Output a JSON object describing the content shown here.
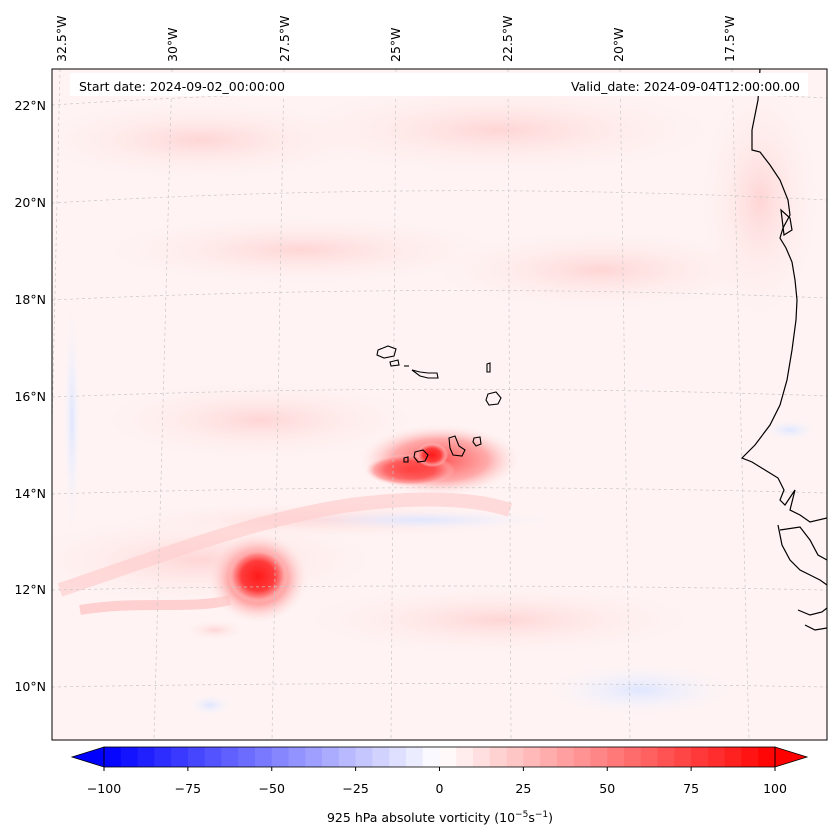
{
  "header": {
    "start_date": "Start date: 2024-09-02_00:00:00",
    "valid_date": "Valid_date: 2024-09-04T12:00:00.00"
  },
  "lon_labels": [
    "32.5°W",
    "30°W",
    "27.5°W",
    "25°W",
    "22.5°W",
    "20°W",
    "17.5°W"
  ],
  "lat_labels": [
    "22°N",
    "20°N",
    "18°N",
    "16°N",
    "14°N",
    "12°N",
    "10°N"
  ],
  "colorbar": {
    "label_html": "925 hPa absolute vorticity (10<tspan baseline-shift='super' font-size='9'>−5</tspan>s<tspan baseline-shift='super' font-size='9'>−1</tspan>)",
    "label_text": "925 hPa absolute vorticity (10−5s−1)",
    "ticks": [
      "−100",
      "−75",
      "−50",
      "−25",
      "0",
      "25",
      "50",
      "75",
      "100"
    ],
    "min": -100,
    "max": 100,
    "negative_color": "#0000ff",
    "positive_color": "#ff0000"
  },
  "colors": {
    "background_tint": "#fff3f3",
    "coastline": "#000000",
    "gridline": "#c8c8c8"
  }
}
